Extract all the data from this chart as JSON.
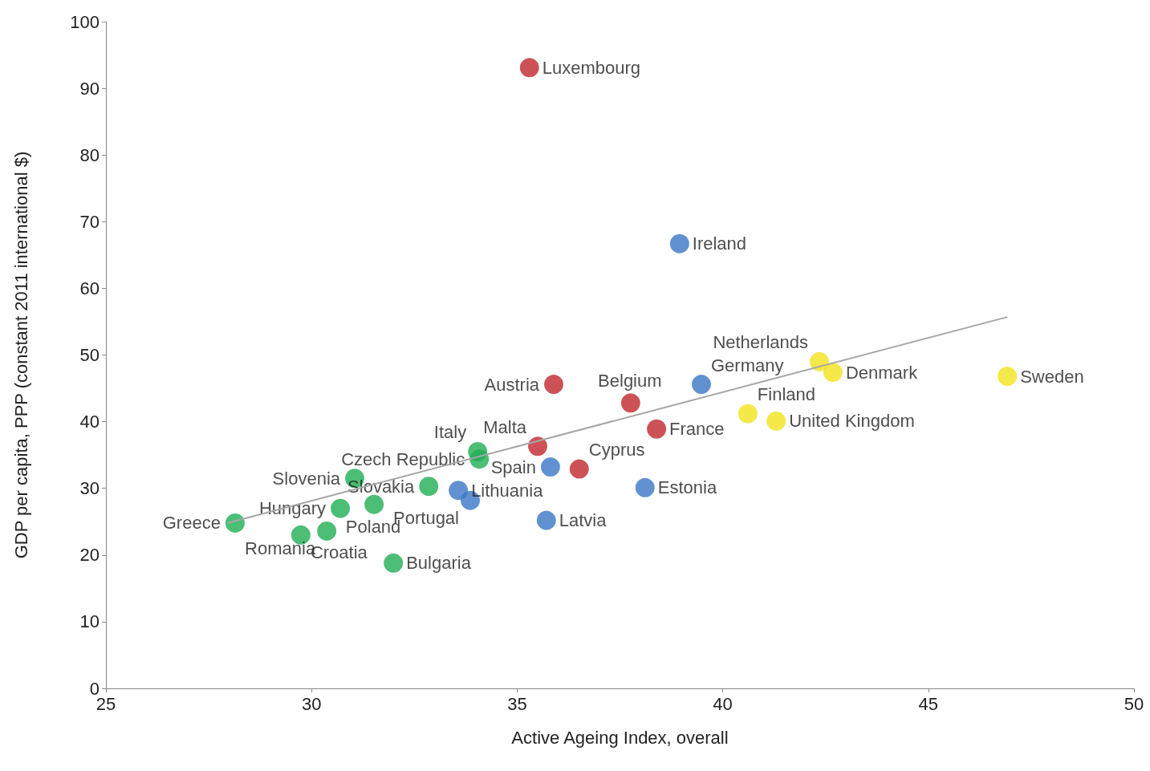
{
  "chart_data": {
    "type": "scatter",
    "xlabel": "Active Ageing Index, overall",
    "ylabel": "GDP per capita, PPP (constant 2011 international $)",
    "xlim": [
      25,
      50
    ],
    "xticks": [
      25,
      30,
      35,
      40,
      45,
      50
    ],
    "ylim": [
      0,
      100
    ],
    "yticks": [
      0,
      10,
      20,
      30,
      40,
      50,
      60,
      70,
      80,
      90,
      100
    ],
    "grid": false,
    "series": [
      {
        "color": "#c0272d",
        "x": [
          35.3,
          35.89,
          37.76,
          38.39,
          35.5,
          36.51
        ],
        "values": [
          93.1,
          45.6,
          42.8,
          38.9,
          36.3,
          32.9
        ],
        "value_labels": [
          "Luxembourg",
          "Austria",
          "Belgium",
          "France",
          "Malta",
          "Cyprus"
        ]
      },
      {
        "color": "#3a75c4",
        "x": [
          38.95,
          39.48,
          35.81,
          33.57,
          33.86,
          35.71,
          38.11
        ],
        "values": [
          66.7,
          45.6,
          33.2,
          29.7,
          28.2,
          25.2,
          30.1
        ],
        "value_labels": [
          "Ireland",
          "Germany",
          "Spain",
          "Lithuania",
          "Portugal",
          "Latvia",
          "Estonia"
        ]
      },
      {
        "color": "#1fae53",
        "x": [
          34.04,
          34.08,
          31.05,
          32.85,
          30.7,
          31.52,
          28.14,
          29.74,
          30.37,
          31.99
        ],
        "values": [
          35.5,
          34.4,
          31.5,
          30.3,
          27.0,
          27.6,
          24.8,
          23.0,
          23.6,
          18.8
        ],
        "value_labels": [
          "Italy",
          "Czech Republic",
          "Slovenia",
          "Slovakia",
          "Hungary",
          "Poland",
          "Greece",
          "Croatia",
          "Romania",
          "Bulgaria"
        ]
      },
      {
        "color": "#f2e21b",
        "x": [
          42.35,
          42.68,
          46.92,
          40.61,
          41.3
        ],
        "values": [
          49.0,
          47.4,
          46.8,
          41.2,
          40.1
        ],
        "value_labels": [
          "Netherlands",
          "Denmark",
          "Sweden",
          "Finland",
          "United Kingdom"
        ]
      },
      {
        "type": "line",
        "color": "#a6a6a6",
        "x": [
          27.95,
          46.92
        ],
        "values": [
          24.8,
          55.7
        ]
      }
    ]
  }
}
